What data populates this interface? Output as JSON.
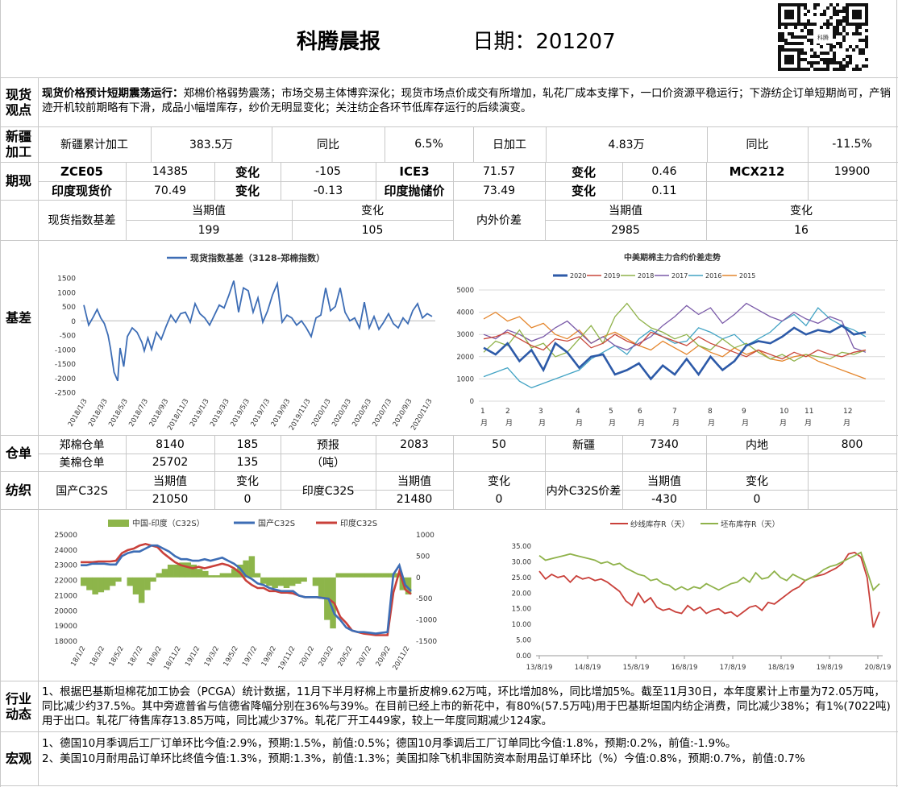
{
  "header": {
    "title": "科腾晨报",
    "date_label": "日期：201207",
    "qr_label": "科腾"
  },
  "labels": {
    "xianhuo": "现货\n观点",
    "xinjiang": "新疆\n加工",
    "qixian": "期现",
    "jicha": "基差",
    "cangdan": "仓单",
    "fangzhi": "纺织",
    "hangye": "行业\n动态",
    "hongguan": "宏观"
  },
  "viewpoint": {
    "bold": "现货价格预计短期震荡运行：",
    "text": "郑棉价格弱势震荡；市场交易主体博弈深化；现货市场点价成交有所增加，轧花厂成本支撑下，一口价资源平稳运行；下游纺企订单短期尚可，产销迹开机较前期略有下滑，成品小幅增库存，纱价无明显变化；关注纺企各环节低库存运行的后续演变。"
  },
  "xinjiang": {
    "c1": "新疆累计加工",
    "c2": "383.5万",
    "c3": "同比",
    "c4": "6.5%",
    "c5": "日加工",
    "c6": "4.83万",
    "c7": "同比",
    "c8": "-11.5%"
  },
  "futures": {
    "r1": [
      "ZCE05",
      "14385",
      "变化",
      "-105",
      "ICE3",
      "71.57",
      "变化",
      "0.46",
      "MCX212",
      "19900"
    ],
    "r2": [
      "印度现货价",
      "70.49",
      "变化",
      "-0.13",
      "印度抛储价",
      "73.49",
      "变化",
      "0.11"
    ]
  },
  "basis": {
    "h1": "现货指数基差",
    "h2": "当期值",
    "h3": "变化",
    "h4": "内外价差",
    "h5": "当期值",
    "h6": "变化",
    "v1": "199",
    "v2": "105",
    "v3": "2985",
    "v4": "16"
  },
  "warehouse": {
    "r1": [
      "郑棉仓单",
      "8140",
      "185",
      "预报",
      "2083",
      "50",
      "新疆",
      "7340",
      "内地",
      "800"
    ],
    "r2": [
      "美棉仓单",
      "25702",
      "135",
      "（吨）"
    ]
  },
  "textile": {
    "h1": "当期值",
    "h2": "变化",
    "h3": "当期值",
    "h4": "变化",
    "h5": "当期值",
    "h6": "变化",
    "a": "国产C32S",
    "b": "印度C32S",
    "c": "内外C32S价差",
    "v1": "21050",
    "v2": "0",
    "v3": "21480",
    "v4": "0",
    "v5": "-430",
    "v6": "0"
  },
  "industry": {
    "text": "1、根据巴基斯坦棉花加工协会（PCGA）统计数据，11月下半月籽棉上市量折皮棉9.62万吨，环比增加8%，同比增加5%。截至11月30日，本年度累计上市量为72.05万吨，同比减少约37.5%。其中旁遮普省与信德省降幅分别在36%与39%。在目前已经上市的新花中，有80%(57.5万吨)用于巴基斯坦国内纺企消费，同比减少38%；有1%(7022吨)用于出口。轧花厂待售库存13.85万吨，同比减少37%。轧花厂开工449家，较上一年度同期减少124家。"
  },
  "macro": {
    "l1": "1、德国10月季调后工厂订单环比今值:2.9%，预期:1.5%，前值:0.5%；德国10月季调后工厂订单同比今值:1.8%，预期:0.2%，前值:-1.9%。",
    "l2": "2、美国10月耐用品订单环比终值今值:1.3%，预期:1.3%，前值:1.3%；美国扣除飞机非国防资本耐用品订单环比（%）今值:0.8%，预期:0.7%，前值:0.7%"
  },
  "chart_data": [
    {
      "type": "line",
      "title": "",
      "legend": [
        "现货指数基差（3128-郑棉指数）"
      ],
      "ylim": [
        -2500,
        1500
      ],
      "yticks": [
        "1500",
        "1000",
        "500",
        "0",
        "-500",
        "-1000",
        "-1500",
        "-2000",
        "-2500"
      ],
      "xticks": [
        "2018/1/3",
        "2018/3/3",
        "2018/5/3",
        "2018/7/3",
        "2018/9/3",
        "2018/11/3",
        "2019/1/3",
        "2019/3/3",
        "2019/5/3",
        "2019/7/3",
        "2019/9/3",
        "2019/11/3",
        "2020/1/3",
        "2020/3/3",
        "2020/5/3",
        "2020/7/3",
        "2020/9/3",
        "2020/11/3"
      ],
      "series": [
        {
          "name": "现货指数基差（3128-郑棉指数）",
          "color": "#3d6db5",
          "x": [
            0,
            4,
            8,
            11,
            14,
            17,
            20,
            22,
            25,
            28,
            30,
            33,
            36,
            40,
            44,
            48,
            50,
            53,
            56,
            60,
            64,
            68,
            72,
            76,
            80,
            84,
            88,
            92,
            96,
            100,
            104,
            108,
            112,
            116,
            120,
            124,
            128,
            132,
            136,
            140,
            144,
            148,
            152,
            156,
            160,
            164,
            168,
            172,
            176,
            180,
            184,
            188,
            192,
            196,
            200,
            204,
            208,
            212,
            216,
            220,
            224,
            228,
            232,
            236,
            240,
            244,
            248,
            252,
            256,
            260,
            264,
            268,
            272,
            276,
            280,
            284,
            288
          ],
          "y": [
            550,
            -150,
            150,
            400,
            100,
            -100,
            -500,
            -950,
            -1800,
            -2100,
            -950,
            -1600,
            -550,
            -250,
            -400,
            -750,
            -1050,
            -600,
            -1000,
            -400,
            -650,
            -200,
            200,
            -50,
            250,
            300,
            -50,
            600,
            250,
            100,
            -150,
            200,
            550,
            450,
            900,
            1400,
            300,
            1150,
            1050,
            300,
            800,
            -50,
            350,
            900,
            1300,
            -50,
            200,
            100,
            -150,
            0,
            -250,
            -550,
            100,
            200,
            1150,
            350,
            500,
            1150,
            300,
            0,
            100,
            -250,
            650,
            -250,
            150,
            -300,
            -50,
            250,
            -100,
            -250,
            100,
            -100,
            350,
            600,
            100,
            250,
            150
          ]
        }
      ]
    },
    {
      "type": "line",
      "title": "中美期棉主力合约价差走势",
      "ylim": [
        0,
        5000
      ],
      "yticks": [
        "5000",
        "4000",
        "3000",
        "2000",
        "1000",
        "0"
      ],
      "xticks": [
        "1\n月",
        "2\n月",
        "3\n月",
        "4\n月",
        "5\n月",
        "6\n月",
        "7\n月",
        "8\n月",
        "9\n月",
        "10\n月",
        "11\n月",
        "12\n月"
      ],
      "series": [
        {
          "name": "2020",
          "color": "#2d5aa8",
          "values": [
            2400,
            2100,
            2600,
            1800,
            2300,
            1400,
            2600,
            2200,
            1500,
            2000,
            2100,
            1200,
            1400,
            1700,
            1000,
            1600,
            1200,
            1900,
            1200,
            2000,
            1400,
            1800,
            2500,
            2700,
            2600,
            2900,
            3300,
            3000,
            3200,
            3100,
            3400,
            3000,
            3100
          ]
        },
        {
          "name": "2019",
          "color": "#c9473a",
          "values": [
            2800,
            2900,
            3100,
            2800,
            2500,
            2300,
            2800,
            2700,
            2900,
            2400,
            2600,
            3000,
            2700,
            2500,
            3100,
            2900,
            2700,
            2500,
            2900,
            2600,
            2400,
            2200,
            2000,
            2300,
            2100,
            1900,
            2200,
            2000,
            2300,
            2100,
            2000,
            2200,
            2300
          ]
        },
        {
          "name": "2018",
          "color": "#8fb24a",
          "values": [
            2200,
            2700,
            2500,
            3200,
            2400,
            2600,
            2000,
            2200,
            2800,
            3400,
            2600,
            3800,
            4400,
            3700,
            3300,
            3100,
            2800,
            3000,
            2500,
            2300,
            2800,
            2400,
            2600,
            2200,
            1900,
            2100,
            1800,
            2100,
            2000,
            1900,
            2200,
            2100,
            2300
          ]
        },
        {
          "name": "2017",
          "color": "#7a5aa8",
          "values": [
            3000,
            2800,
            3200,
            3000,
            2700,
            2900,
            3300,
            3600,
            3100,
            2600,
            2900,
            2500,
            2300,
            2600,
            2900,
            3400,
            3800,
            4300,
            3900,
            4200,
            3500,
            3900,
            4400,
            4100,
            3800,
            3600,
            4000,
            3700,
            3500,
            3800,
            3600,
            2400,
            2200
          ]
        },
        {
          "name": "2016",
          "color": "#42a3c4",
          "values": [
            1100,
            1300,
            1500,
            900,
            600,
            800,
            1000,
            1200,
            1400,
            1900,
            2200,
            2500,
            2100,
            2800,
            3200,
            2900,
            2600,
            2700,
            3300,
            3100,
            2800,
            3000,
            2500,
            2800,
            3100,
            3600,
            3900,
            3400,
            4200,
            3700,
            3400,
            3200,
            2900
          ]
        },
        {
          "name": "2015",
          "color": "#e4862d",
          "values": [
            3700,
            4000,
            3600,
            3800,
            3300,
            3500,
            3000,
            2800,
            3200,
            2600,
            2900,
            3100,
            2800,
            2500,
            2300,
            2700,
            2400,
            2100,
            2500,
            2200,
            2000,
            2400,
            2100,
            2300,
            1900,
            1800,
            2000,
            2100,
            1800,
            1600,
            1400,
            1200,
            1000
          ]
        }
      ]
    },
    {
      "type": "line",
      "title": "",
      "legend": [
        "中国-印度（C32S）",
        "国产C32S",
        "印度C32S"
      ],
      "ylim": [
        18000,
        25000
      ],
      "y2lim": [
        -1500,
        1000
      ],
      "yticks": [
        "25000",
        "24000",
        "23000",
        "22000",
        "21000",
        "20000",
        "19000",
        "18000"
      ],
      "y2ticks": [
        "1000",
        "500",
        "0",
        "-500",
        "-1000",
        "-1500"
      ],
      "xticks": [
        "18/1/2",
        "18/3/2",
        "18/5/2",
        "18/7/2",
        "18/9/2",
        "18/11/2",
        "19/1/2",
        "19/3/2",
        "19/5/2",
        "19/7/2",
        "19/9/2",
        "19/11/2",
        "20/1/2",
        "20/3/2",
        "20/5/2",
        "20/7/2",
        "20/9/2",
        "20/11/2"
      ],
      "series": [
        {
          "name": "中国-印度（C32S）",
          "type": "bar",
          "color": "#8db54a",
          "values": [
            -200,
            -300,
            -400,
            -350,
            -300,
            -200,
            -100,
            0,
            -200,
            -400,
            -600,
            -300,
            -100,
            100,
            200,
            300,
            300,
            350,
            350,
            300,
            200,
            150,
            50,
            50,
            100,
            100,
            200,
            300,
            400,
            500,
            100,
            -150,
            -200,
            -250,
            -200,
            -250,
            -200,
            -150,
            -100,
            0,
            -200,
            -500,
            -1000,
            -1200,
            100,
            100,
            100,
            100,
            100,
            100,
            100,
            100,
            100,
            100,
            100,
            -300,
            -400
          ]
        },
        {
          "name": "国产C32S",
          "color": "#3d6db5",
          "values": [
            23000,
            23000,
            23100,
            23100,
            23100,
            23050,
            23050,
            23600,
            23800,
            23900,
            23900,
            24100,
            24300,
            24300,
            24100,
            23900,
            23600,
            23400,
            23400,
            23300,
            23300,
            23400,
            23300,
            23400,
            23500,
            23300,
            23100,
            22800,
            22300,
            22100,
            21800,
            21700,
            21500,
            21400,
            21300,
            21300,
            21300,
            21000,
            20900,
            20900,
            20900,
            20850,
            20800,
            19800,
            19400,
            18900,
            18700,
            18600,
            18600,
            18550,
            18500,
            18550,
            18600,
            22400,
            23000,
            21700,
            21300
          ]
        },
        {
          "name": "印度C32S",
          "color": "#c9403a",
          "values": [
            23200,
            23200,
            23200,
            23250,
            23250,
            23250,
            23300,
            23800,
            24000,
            24100,
            24300,
            24400,
            24300,
            24200,
            23800,
            23500,
            23200,
            23000,
            22900,
            22800,
            22900,
            22800,
            22900,
            23000,
            23100,
            23000,
            22800,
            22500,
            22000,
            21700,
            21500,
            21500,
            21300,
            21300,
            21200,
            21200,
            21150,
            21000,
            20900,
            20900,
            20900,
            20850,
            20800,
            20500,
            19600,
            19200,
            18700,
            18600,
            18500,
            18450,
            18400,
            18400,
            18400,
            21200,
            22600,
            21400,
            21100
          ]
        }
      ]
    },
    {
      "type": "line",
      "title": "",
      "legend": [
        "纱线库存R（天）",
        "坯布库存R（天）"
      ],
      "ylim": [
        0,
        35
      ],
      "yticks": [
        "35.00",
        "30.00",
        "25.00",
        "20.00",
        "15.00",
        "10.00",
        "5.00",
        "0.00"
      ],
      "xticks": [
        "13/8/19",
        "14/8/19",
        "15/8/19",
        "16/8/19",
        "17/8/19",
        "18/8/19",
        "19/8/19",
        "20/8/19"
      ],
      "series": [
        {
          "name": "纱线库存R（天）",
          "color": "#c9403a",
          "values": [
            27,
            24.5,
            26,
            25,
            25.5,
            23.5,
            25.5,
            24.5,
            25,
            24,
            24.5,
            23.5,
            22,
            20.5,
            17.5,
            16,
            20,
            17,
            18.5,
            15.5,
            14.5,
            15,
            14,
            13.5,
            16,
            14.5,
            15.5,
            13.5,
            14.5,
            15,
            13.5,
            14,
            12.5,
            14,
            15.5,
            16,
            14.5,
            17,
            16.5,
            18,
            19.5,
            21,
            22,
            24,
            25,
            25.5,
            26,
            27,
            28,
            29.5,
            32.5,
            33,
            31.5,
            25,
            9,
            14
          ]
        },
        {
          "name": "坯布库存R（天）",
          "color": "#8fb24a",
          "values": [
            32,
            30.5,
            31,
            31.5,
            32,
            32.5,
            32,
            31.5,
            31,
            30.5,
            29.5,
            30,
            29,
            29.5,
            28,
            27,
            26,
            25.5,
            24,
            24.5,
            23,
            22.5,
            21,
            22,
            21,
            22,
            21.5,
            23,
            22,
            21,
            22,
            23,
            23.5,
            25,
            23.5,
            26.5,
            24.5,
            25,
            27,
            25,
            24,
            26,
            25,
            24,
            25,
            26,
            27.5,
            28.5,
            29,
            30,
            31,
            32,
            33,
            27,
            21,
            23
          ]
        }
      ]
    }
  ]
}
